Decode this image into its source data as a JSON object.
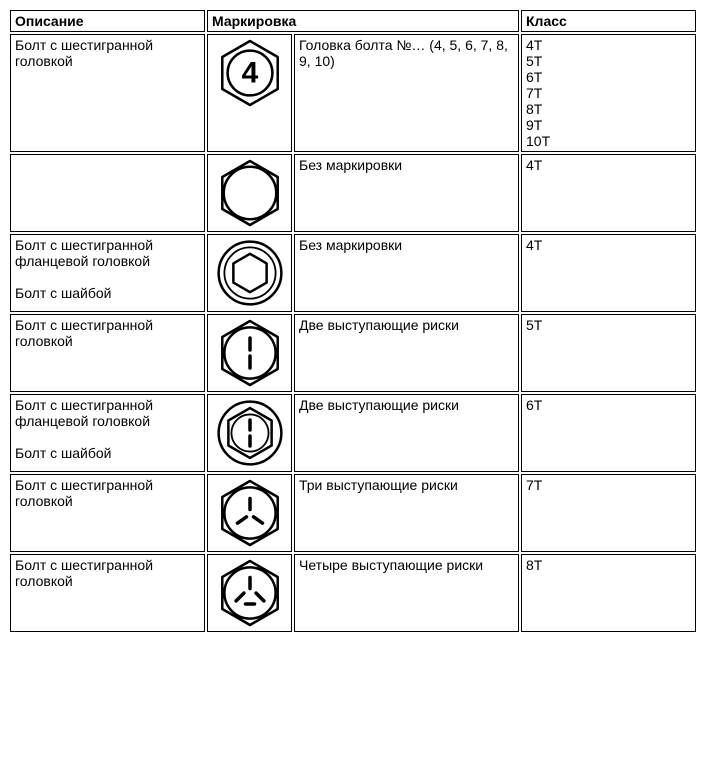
{
  "table": {
    "headers": {
      "description": "Описание",
      "marking": "Маркировка",
      "class": "Класс"
    },
    "rows": [
      {
        "description": "Болт с шестигранной головкой",
        "marking_desc": "Головка болта №… (4, 5, 6, 7, 8, 9, 10)",
        "class": "4T\n5T\n6T\n7T\n8T\n9T\n10T",
        "icon": "hex_number4"
      },
      {
        "description": "",
        "marking_desc": "Без маркировки",
        "class": "4T",
        "icon": "hex_plain"
      },
      {
        "description": "Болт с шестигранной фланцевой головкой\n\nБолт с шайбой",
        "marking_desc": "Без маркировки",
        "class": "4T",
        "icon": "flange_plain"
      },
      {
        "description": "Болт с шестигранной головкой",
        "marking_desc": "Две выступающие риски",
        "class": "5T",
        "icon": "hex_2dash"
      },
      {
        "description": "Болт с шестигранной фланцевой головкой\n\nБолт с шайбой",
        "marking_desc": "Две выступающие риски",
        "class": "6T",
        "icon": "flange_2dash"
      },
      {
        "description": "Болт с шестигранной головкой",
        "marking_desc": "Три выступающие риски",
        "class": "7T",
        "icon": "hex_3dash"
      },
      {
        "description": "Болт с шестигранной головкой",
        "marking_desc": "Четыре выступающие риски",
        "class": "8T",
        "icon": "hex_4dash"
      }
    ]
  },
  "style": {
    "icon_stroke": "#000000",
    "icon_stroke_width": 2.5,
    "icon_size": 72,
    "number_font": "bold 28px Arial"
  }
}
